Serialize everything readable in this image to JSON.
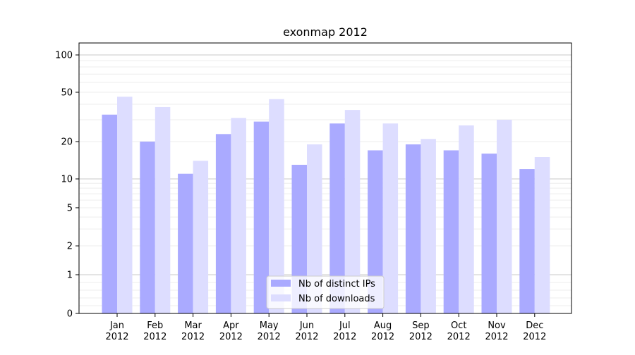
{
  "chart_data": {
    "type": "bar",
    "title": "exonmap 2012",
    "xlabel": "",
    "ylabel": "",
    "y_scale": "symlog",
    "y_ticks": [
      0,
      1,
      2,
      5,
      10,
      20,
      50,
      100
    ],
    "y_tick_labels": [
      "0",
      "1",
      "2",
      "5",
      "10",
      "20",
      "50",
      "100"
    ],
    "ylim": [
      0,
      120
    ],
    "grid": true,
    "legend_position": "bottom-center",
    "categories": [
      "Jan",
      "Feb",
      "Mar",
      "Apr",
      "May",
      "Jun",
      "Jul",
      "Aug",
      "Sep",
      "Oct",
      "Nov",
      "Dec"
    ],
    "category_sublabel": "2012",
    "series": [
      {
        "name": "Nb of distinct IPs",
        "color": "#aaaaff",
        "values": [
          33,
          20,
          11,
          23,
          29,
          13,
          28,
          17,
          19,
          17,
          16,
          12
        ]
      },
      {
        "name": "Nb of downloads",
        "color": "#ddddff",
        "values": [
          46,
          38,
          14,
          31,
          44,
          19,
          36,
          28,
          21,
          27,
          30,
          15
        ]
      }
    ]
  }
}
